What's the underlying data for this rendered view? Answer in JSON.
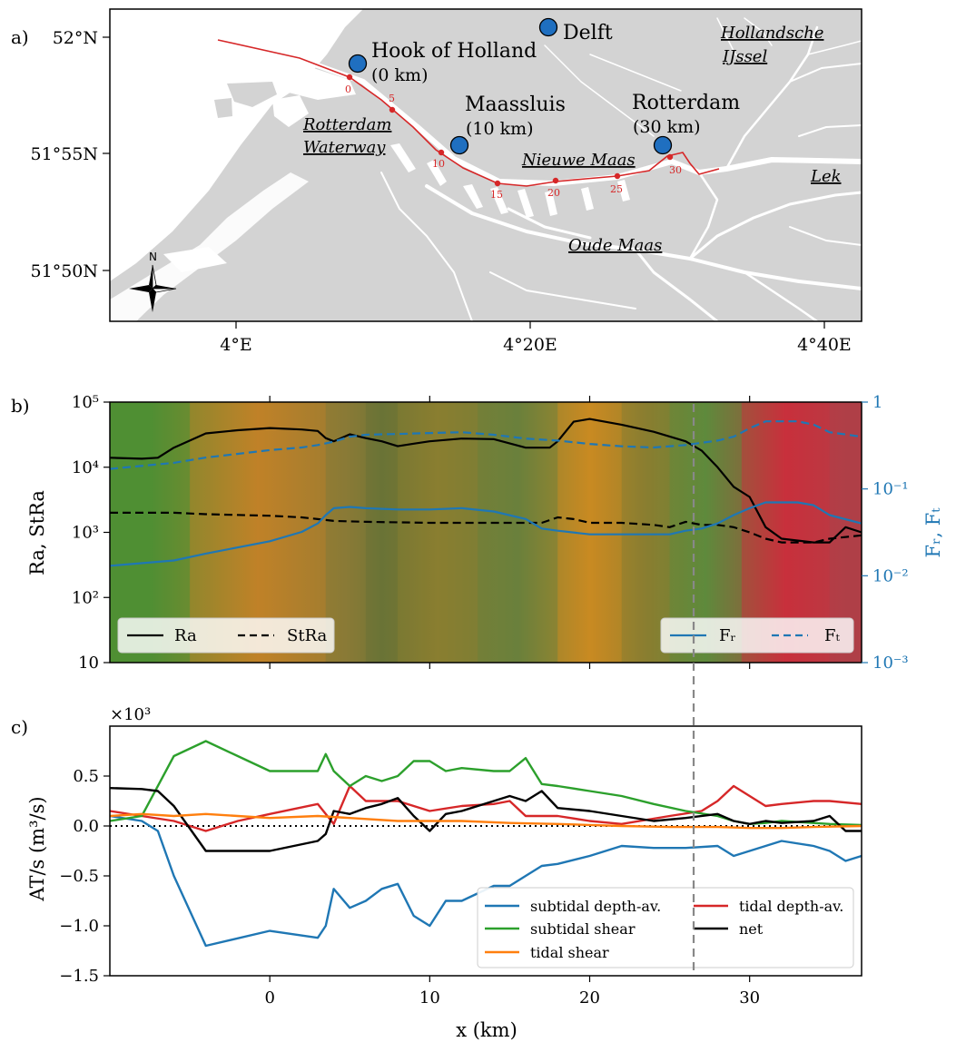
{
  "panel_a": {
    "letter": "a)",
    "lat_ticks": [
      "52°N",
      "51°55N",
      "51°50N"
    ],
    "lon_ticks": [
      "4°E",
      "4°20E",
      "4°40E"
    ],
    "city_labels": [
      {
        "name": "Hook of Holland",
        "sub": "(0 km)"
      },
      {
        "name": "Maassluis",
        "sub": "(10 km)"
      },
      {
        "name": "Rotterdam",
        "sub": "(30 km)"
      },
      {
        "name": "Delft",
        "sub": ""
      }
    ],
    "water_labels": [
      "Rotterdam",
      "Waterway",
      "Nieuwe Maas",
      "Oude Maas",
      "Lek",
      "Hollandsche",
      "IJssel"
    ],
    "km_marks": [
      "0",
      "5",
      "10",
      "15",
      "20",
      "25",
      "30"
    ],
    "north_label": "N",
    "colors": {
      "land": "#d3d3d3",
      "water": "#ffffff",
      "channel": "#d62728",
      "city": "#1f6fc0"
    }
  },
  "chart_data": [
    {
      "type": "line",
      "panel": "b)",
      "xlim": [
        -10,
        37
      ],
      "y_left": {
        "label": "Ra, StRa",
        "scale": "log",
        "lim": [
          10,
          100000
        ],
        "ticks": [
          "10",
          "10²",
          "10³",
          "10⁴",
          "10⁵"
        ]
      },
      "y_right": {
        "label": "Fᵣ, Fₜ",
        "scale": "log",
        "lim": [
          0.001,
          1
        ],
        "ticks": [
          "10⁻³",
          "10⁻²",
          "10⁻¹",
          "1"
        ]
      },
      "series": [
        {
          "name": "Ra",
          "axis": "left",
          "style": "solid",
          "color": "#000000",
          "x": [
            -10,
            -8,
            -7,
            -6,
            -4,
            -2,
            0,
            2,
            3,
            3.5,
            4,
            5,
            6,
            7,
            8,
            9,
            10,
            12,
            14,
            16,
            17.5,
            18,
            19,
            20,
            22,
            24,
            26,
            27,
            28,
            29,
            30,
            31,
            32,
            34,
            35,
            36,
            37
          ],
          "y": [
            14000,
            13500,
            14000,
            20000,
            33000,
            37000,
            40000,
            38000,
            36000,
            28000,
            25000,
            32000,
            28000,
            25000,
            21000,
            23000,
            25000,
            27500,
            27000,
            20000,
            20000,
            25000,
            50000,
            55000,
            45000,
            35000,
            25000,
            18000,
            10000,
            5000,
            3500,
            1200,
            800,
            700,
            700,
            1200,
            1000
          ]
        },
        {
          "name": "StRa",
          "axis": "left",
          "style": "dashed",
          "color": "#000000",
          "x": [
            -10,
            -6,
            -4,
            0,
            2,
            3,
            4,
            6,
            10,
            14,
            17,
            18,
            19,
            20,
            22,
            24,
            25,
            26,
            27,
            28,
            29,
            30,
            31,
            32,
            34,
            35,
            37
          ],
          "y": [
            2000,
            2000,
            1900,
            1800,
            1700,
            1600,
            1500,
            1450,
            1400,
            1400,
            1400,
            1700,
            1600,
            1400,
            1400,
            1300,
            1200,
            1450,
            1300,
            1300,
            1200,
            1000,
            800,
            700,
            700,
            800,
            900
          ]
        },
        {
          "name": "Fᵣ",
          "axis": "right",
          "style": "solid",
          "color": "#1f77b4",
          "x": [
            -10,
            -6,
            -4,
            0,
            2,
            3,
            3.5,
            4,
            5,
            6,
            8,
            10,
            12,
            14,
            16,
            17,
            18,
            20,
            22,
            24,
            25,
            26,
            27,
            28,
            29,
            30,
            31,
            32,
            33,
            34,
            35,
            37
          ],
          "y": [
            0.013,
            0.015,
            0.018,
            0.025,
            0.032,
            0.04,
            0.05,
            0.06,
            0.062,
            0.06,
            0.058,
            0.058,
            0.06,
            0.055,
            0.045,
            0.035,
            0.033,
            0.03,
            0.03,
            0.03,
            0.03,
            0.033,
            0.035,
            0.04,
            0.05,
            0.06,
            0.07,
            0.07,
            0.07,
            0.065,
            0.05,
            0.04
          ]
        },
        {
          "name": "Fₜ",
          "axis": "right",
          "style": "dashed",
          "color": "#1f77b4",
          "x": [
            -10,
            -6,
            -4,
            0,
            2,
            3,
            4,
            5,
            6,
            8,
            10,
            12,
            14,
            16,
            18,
            20,
            22,
            24,
            26,
            27,
            28,
            29,
            30,
            31,
            32,
            33,
            34,
            35,
            37
          ],
          "y": [
            0.17,
            0.2,
            0.23,
            0.28,
            0.3,
            0.32,
            0.35,
            0.4,
            0.42,
            0.43,
            0.44,
            0.45,
            0.42,
            0.38,
            0.36,
            0.33,
            0.31,
            0.3,
            0.32,
            0.34,
            0.36,
            0.4,
            0.5,
            0.6,
            0.6,
            0.6,
            0.55,
            0.45,
            0.4
          ]
        }
      ],
      "background_bands": [
        {
          "x0": -10,
          "x1": -5,
          "color": "#4f8f34"
        },
        {
          "x0": -5,
          "x1": 3.5,
          "color": "#c08228"
        },
        {
          "x0": 3.5,
          "x1": 6,
          "color": "#8a7a36"
        },
        {
          "x0": 6,
          "x1": 8,
          "color": "#6a7436"
        },
        {
          "x0": 8,
          "x1": 13,
          "color": "#8a7e30"
        },
        {
          "x0": 13,
          "x1": 18,
          "color": "#6a803c"
        },
        {
          "x0": 18,
          "x1": 22,
          "color": "#c98a22"
        },
        {
          "x0": 22,
          "x1": 25,
          "color": "#8a7e30"
        },
        {
          "x0": 25,
          "x1": 29.5,
          "color": "#5f8a3c"
        },
        {
          "x0": 29.5,
          "x1": 35,
          "color": "#c8303c"
        },
        {
          "x0": 35,
          "x1": 37,
          "color": "#b04048"
        }
      ],
      "marker_x": 26.5,
      "legend_left": [
        "Ra",
        "StRa"
      ],
      "legend_right": [
        "Fᵣ",
        "Fₜ"
      ]
    },
    {
      "type": "line",
      "panel": "c)",
      "xlim": [
        -10,
        37
      ],
      "ylim": [
        -1.5,
        1.0
      ],
      "xticks": [
        "0",
        "10",
        "20",
        "30"
      ],
      "yticks": [
        "−1.5",
        "−1.0",
        "−0.5",
        "0.0",
        "0.5"
      ],
      "xlabel": "x (km)",
      "ylabel": "AT/s (m³/s)",
      "multiplier": "×10³",
      "zero_line": "dotted",
      "marker_x": 26.5,
      "series": [
        {
          "name": "subtidal depth-av.",
          "color": "#1f77b4",
          "x": [
            -10,
            -8,
            -7,
            -6,
            -4,
            0,
            3,
            3.5,
            4,
            5,
            6,
            7,
            8,
            9,
            10,
            11,
            12,
            14,
            15,
            16,
            17,
            18,
            20,
            22,
            24,
            26,
            28,
            29,
            30,
            31,
            32,
            34,
            35,
            36,
            37
          ],
          "y": [
            0.1,
            0.05,
            -0.05,
            -0.5,
            -1.2,
            -1.05,
            -1.12,
            -1.0,
            -0.63,
            -0.82,
            -0.75,
            -0.63,
            -0.58,
            -0.9,
            -1.0,
            -0.75,
            -0.75,
            -0.6,
            -0.6,
            -0.5,
            -0.4,
            -0.38,
            -0.3,
            -0.2,
            -0.22,
            -0.22,
            -0.2,
            -0.3,
            -0.25,
            -0.2,
            -0.15,
            -0.2,
            -0.25,
            -0.35,
            -0.3
          ]
        },
        {
          "name": "tidal depth-av.",
          "color": "#d62728",
          "x": [
            -10,
            -8,
            -6,
            -4,
            -2,
            0,
            3,
            4,
            5,
            6,
            8,
            10,
            12,
            14,
            15,
            16,
            17,
            18,
            20,
            22,
            25,
            27,
            28,
            29,
            30,
            31,
            32,
            34,
            35,
            37
          ],
          "y": [
            0.15,
            0.1,
            0.05,
            -0.05,
            0.05,
            0.12,
            0.22,
            0.02,
            0.4,
            0.25,
            0.25,
            0.15,
            0.2,
            0.22,
            0.25,
            0.1,
            0.1,
            0.1,
            0.05,
            0.02,
            0.1,
            0.15,
            0.25,
            0.4,
            0.3,
            0.2,
            0.22,
            0.25,
            0.25,
            0.22
          ]
        },
        {
          "name": "subtidal shear",
          "color": "#2ca02c",
          "x": [
            -10,
            -8,
            -6,
            -4,
            -2,
            0,
            3,
            3.5,
            4,
            5,
            6,
            7,
            8,
            9,
            10,
            11,
            12,
            14,
            15,
            16,
            17,
            18,
            20,
            22,
            24,
            26,
            28,
            29,
            30,
            31,
            32,
            34,
            35,
            37
          ],
          "y": [
            0.05,
            0.1,
            0.7,
            0.85,
            0.7,
            0.55,
            0.55,
            0.72,
            0.55,
            0.4,
            0.5,
            0.45,
            0.5,
            0.65,
            0.65,
            0.55,
            0.58,
            0.55,
            0.55,
            0.68,
            0.42,
            0.4,
            0.35,
            0.3,
            0.22,
            0.15,
            0.1,
            0.05,
            0.02,
            0.03,
            0.05,
            0.03,
            0.02,
            0.01
          ]
        },
        {
          "name": "net",
          "color": "#000000",
          "x": [
            -10,
            -8,
            -7,
            -6,
            -4,
            0,
            3,
            3.5,
            4,
            5,
            6,
            7,
            8,
            9,
            10,
            11,
            12,
            14,
            15,
            16,
            17,
            18,
            20,
            22,
            24,
            26,
            28,
            29,
            30,
            31,
            32,
            34,
            35,
            36,
            37
          ],
          "y": [
            0.38,
            0.37,
            0.35,
            0.2,
            -0.25,
            -0.25,
            -0.15,
            -0.08,
            0.15,
            0.12,
            0.18,
            0.22,
            0.28,
            0.1,
            -0.05,
            0.12,
            0.15,
            0.25,
            0.3,
            0.25,
            0.35,
            0.18,
            0.15,
            0.1,
            0.05,
            0.08,
            0.12,
            0.05,
            0.02,
            0.05,
            0.03,
            0.05,
            0.1,
            -0.05,
            -0.05
          ]
        },
        {
          "name": "tidal shear",
          "color": "#ff7f0e",
          "x": [
            -10,
            -8,
            -6,
            -4,
            -2,
            0,
            3,
            5,
            8,
            10,
            12,
            15,
            18,
            20,
            22,
            25,
            28,
            30,
            32,
            34,
            37
          ],
          "y": [
            0.1,
            0.12,
            0.1,
            0.12,
            0.1,
            0.08,
            0.1,
            0.08,
            0.05,
            0.05,
            0.05,
            0.03,
            0.02,
            0.01,
            0.0,
            -0.01,
            -0.01,
            -0.02,
            -0.02,
            -0.01,
            0.0
          ]
        }
      ],
      "legend": [
        "subtidal depth-av.",
        "tidal depth-av.",
        "subtidal shear",
        "net",
        "tidal shear"
      ]
    }
  ]
}
